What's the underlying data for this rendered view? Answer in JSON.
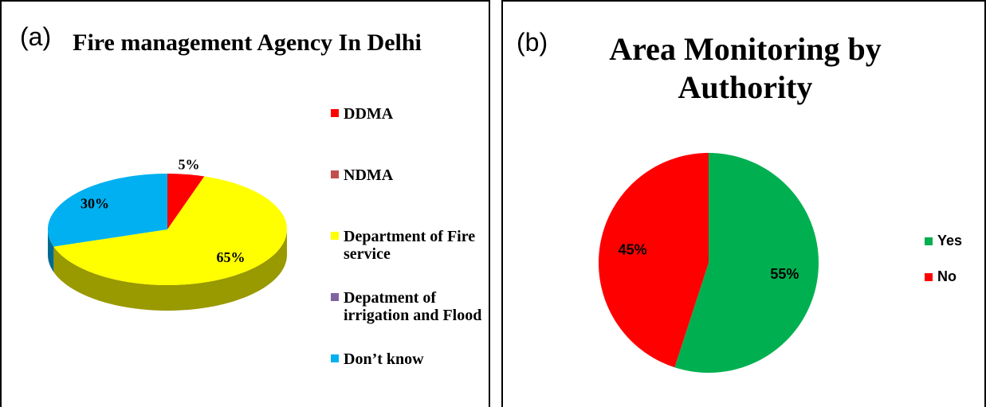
{
  "chart_data": [
    {
      "type": "pie3d",
      "panel_label": "(a)",
      "title": "Fire management  Agency In Delhi",
      "categories": [
        "DDMA",
        "NDMA",
        "Department of Fire service",
        "Depatment of irrigation and Flood",
        "Don’t know"
      ],
      "values": [
        5,
        0,
        65,
        0,
        30
      ],
      "value_labels": [
        "5%",
        null,
        "65%",
        null,
        "30%"
      ],
      "colors": [
        "#ff0000",
        "#c0504d",
        "#ffff00",
        "#8064a2",
        "#00b0f0"
      ],
      "legend": "right"
    },
    {
      "type": "pie",
      "panel_label": "(b)",
      "title": "Area Monitoring by Authority",
      "categories": [
        "Yes",
        "No"
      ],
      "values": [
        55,
        45
      ],
      "value_labels": [
        "55%",
        "45%"
      ],
      "colors": [
        "#00b050",
        "#ff0000"
      ],
      "legend": "right"
    }
  ]
}
